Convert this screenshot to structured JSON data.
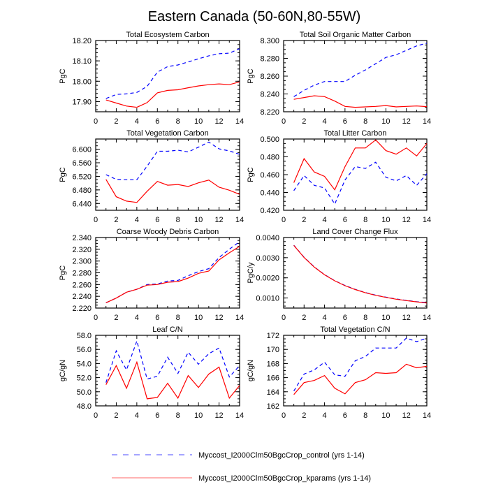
{
  "title": "Eastern Canada (50-60N,80-55W)",
  "legend": [
    {
      "label": "Myccost_I2000Clm50BgcCrop_control (yrs 1-14)",
      "color": "#0000ff",
      "style": "dashed"
    },
    {
      "label": "Myccost_I2000Clm50BgcCrop_kparams (yrs 1-14)",
      "color": "#ff0000",
      "style": "solid"
    }
  ],
  "chart_data": [
    {
      "type": "line",
      "title": "Total Ecosystem Carbon",
      "xlabel": "",
      "ylabel": "PgC",
      "xlim": [
        0,
        14
      ],
      "ylim": [
        17.85,
        18.2
      ],
      "xticks": [
        0,
        2,
        4,
        6,
        8,
        10,
        12,
        14
      ],
      "yticks": [
        17.9,
        18.0,
        18.1,
        18.2
      ],
      "ytick_labels": [
        "17.90",
        "18.00",
        "18.10",
        "18.20"
      ],
      "yminor": 0.02,
      "x": [
        1,
        2,
        3,
        4,
        5,
        6,
        7,
        8,
        9,
        10,
        11,
        12,
        13,
        14
      ],
      "series": [
        {
          "name": "Myccost_I2000Clm50BgcCrop_control (yrs 1-14)",
          "values": [
            17.915,
            17.935,
            17.938,
            17.945,
            17.975,
            18.045,
            18.072,
            18.08,
            18.095,
            18.11,
            18.125,
            18.135,
            18.138,
            18.16
          ]
        },
        {
          "name": "Myccost_I2000Clm50BgcCrop_kparams (yrs 1-14)",
          "values": [
            17.908,
            17.893,
            17.878,
            17.872,
            17.895,
            17.943,
            17.955,
            17.958,
            17.968,
            17.977,
            17.983,
            17.987,
            17.983,
            17.997
          ]
        }
      ]
    },
    {
      "type": "line",
      "title": "Total Soil Organic Matter Carbon",
      "xlabel": "",
      "ylabel": "PgC",
      "xlim": [
        0,
        14
      ],
      "ylim": [
        8.22,
        8.3
      ],
      "xticks": [
        0,
        2,
        4,
        6,
        8,
        10,
        12,
        14
      ],
      "yticks": [
        8.22,
        8.24,
        8.26,
        8.28,
        8.3
      ],
      "ytick_labels": [
        "8.220",
        "8.240",
        "8.260",
        "8.280",
        "8.300"
      ],
      "yminor": 0.005,
      "x": [
        1,
        2,
        3,
        4,
        5,
        6,
        7,
        8,
        9,
        10,
        11,
        12,
        13,
        14
      ],
      "series": [
        {
          "name": "Myccost_I2000Clm50BgcCrop_control (yrs 1-14)",
          "values": [
            8.237,
            8.244,
            8.25,
            8.254,
            8.254,
            8.254,
            8.261,
            8.267,
            8.274,
            8.281,
            8.284,
            8.289,
            8.294,
            8.297
          ]
        },
        {
          "name": "Myccost_I2000Clm50BgcCrop_kparams (yrs 1-14)",
          "values": [
            8.234,
            8.236,
            8.238,
            8.237,
            8.232,
            8.226,
            8.225,
            8.2255,
            8.226,
            8.227,
            8.2255,
            8.226,
            8.2265,
            8.2258
          ]
        }
      ]
    },
    {
      "type": "line",
      "title": "Total Vegetation Carbon",
      "xlabel": "",
      "ylabel": "PgC",
      "xlim": [
        0,
        14
      ],
      "ylim": [
        6.42,
        6.63
      ],
      "xticks": [
        0,
        2,
        4,
        6,
        8,
        10,
        12,
        14
      ],
      "yticks": [
        6.44,
        6.48,
        6.52,
        6.56,
        6.6
      ],
      "ytick_labels": [
        "6.440",
        "6.480",
        "6.520",
        "6.560",
        "6.600"
      ],
      "yminor": 0.01,
      "x": [
        1,
        2,
        3,
        4,
        5,
        6,
        7,
        8,
        9,
        10,
        11,
        12,
        13,
        14
      ],
      "series": [
        {
          "name": "Myccost_I2000Clm50BgcCrop_control (yrs 1-14)",
          "values": [
            6.525,
            6.511,
            6.51,
            6.51,
            6.55,
            6.594,
            6.594,
            6.597,
            6.592,
            6.606,
            6.621,
            6.601,
            6.595,
            6.585
          ]
        },
        {
          "name": "Myccost_I2000Clm50BgcCrop_kparams (yrs 1-14)",
          "values": [
            6.511,
            6.46,
            6.447,
            6.443,
            6.476,
            6.505,
            6.494,
            6.496,
            6.49,
            6.501,
            6.509,
            6.488,
            6.479,
            6.467
          ]
        }
      ]
    },
    {
      "type": "line",
      "title": "Total Litter Carbon",
      "xlabel": "",
      "ylabel": "PgC",
      "xlim": [
        0,
        14
      ],
      "ylim": [
        0.42,
        0.5
      ],
      "xticks": [
        0,
        2,
        4,
        6,
        8,
        10,
        12,
        14
      ],
      "yticks": [
        0.42,
        0.44,
        0.46,
        0.48,
        0.5
      ],
      "ytick_labels": [
        "0.420",
        "0.440",
        "0.460",
        "0.480",
        "0.500"
      ],
      "yminor": 0.005,
      "x": [
        1,
        2,
        3,
        4,
        5,
        6,
        7,
        8,
        9,
        10,
        11,
        12,
        13,
        14
      ],
      "series": [
        {
          "name": "Myccost_I2000Clm50BgcCrop_control (yrs 1-14)",
          "values": [
            0.442,
            0.459,
            0.448,
            0.445,
            0.427,
            0.454,
            0.469,
            0.467,
            0.474,
            0.457,
            0.453,
            0.459,
            0.448,
            0.461
          ]
        },
        {
          "name": "Myccost_I2000Clm50BgcCrop_kparams (yrs 1-14)",
          "values": [
            0.451,
            0.478,
            0.463,
            0.458,
            0.443,
            0.469,
            0.49,
            0.49,
            0.499,
            0.487,
            0.483,
            0.49,
            0.481,
            0.495
          ]
        }
      ]
    },
    {
      "type": "line",
      "title": "Coarse Woody Debris Carbon",
      "xlabel": "",
      "ylabel": "PgC",
      "xlim": [
        0,
        14
      ],
      "ylim": [
        2.22,
        2.34
      ],
      "xticks": [
        0,
        2,
        4,
        6,
        8,
        10,
        12,
        14
      ],
      "yticks": [
        2.22,
        2.24,
        2.26,
        2.28,
        2.3,
        2.32,
        2.34
      ],
      "ytick_labels": [
        "2.220",
        "2.240",
        "2.260",
        "2.280",
        "2.300",
        "2.320",
        "2.340"
      ],
      "yminor": 0.005,
      "x": [
        1,
        2,
        3,
        4,
        5,
        6,
        7,
        8,
        9,
        10,
        11,
        12,
        13,
        14
      ],
      "series": [
        {
          "name": "Myccost_I2000Clm50BgcCrop_control (yrs 1-14)",
          "values": [
            2.229,
            2.237,
            2.247,
            2.252,
            2.26,
            2.261,
            2.266,
            2.267,
            2.275,
            2.282,
            2.287,
            2.306,
            2.32,
            2.333
          ]
        },
        {
          "name": "Myccost_I2000Clm50BgcCrop_kparams (yrs 1-14)",
          "values": [
            2.229,
            2.237,
            2.247,
            2.252,
            2.259,
            2.26,
            2.264,
            2.265,
            2.271,
            2.279,
            2.283,
            2.302,
            2.314,
            2.325
          ]
        }
      ]
    },
    {
      "type": "line",
      "title": "Land Cover Change Flux",
      "xlabel": "",
      "ylabel": "PgC/y",
      "xlim": [
        0,
        14
      ],
      "ylim": [
        0.0005,
        0.004
      ],
      "xticks": [
        0,
        2,
        4,
        6,
        8,
        10,
        12,
        14
      ],
      "yticks": [
        0.001,
        0.002,
        0.003,
        0.004
      ],
      "ytick_labels": [
        "0.0010",
        "0.0020",
        "0.0030",
        "0.0040"
      ],
      "yminor": 0.0002,
      "x": [
        1,
        2,
        3,
        4,
        5,
        6,
        7,
        8,
        9,
        10,
        11,
        12,
        13,
        14
      ],
      "series": [
        {
          "name": "Myccost_I2000Clm50BgcCrop_control (yrs 1-14)",
          "values": [
            0.00362,
            0.00302,
            0.00254,
            0.00216,
            0.00186,
            0.00162,
            0.00143,
            0.00127,
            0.00114,
            0.00104,
            0.00095,
            0.00088,
            0.00082,
            0.00077
          ]
        },
        {
          "name": "Myccost_I2000Clm50BgcCrop_kparams (yrs 1-14)",
          "values": [
            0.00361,
            0.00301,
            0.00253,
            0.00215,
            0.00185,
            0.00161,
            0.00142,
            0.00126,
            0.00113,
            0.00103,
            0.00094,
            0.00087,
            0.00081,
            0.00075
          ]
        }
      ]
    },
    {
      "type": "line",
      "title": "Leaf C/N",
      "xlabel": "",
      "ylabel": "gC/gN",
      "xlim": [
        0,
        14
      ],
      "ylim": [
        48.0,
        58.0
      ],
      "xticks": [
        0,
        2,
        4,
        6,
        8,
        10,
        12,
        14
      ],
      "yticks": [
        48,
        50,
        52,
        54,
        56,
        58
      ],
      "ytick_labels": [
        "48.0",
        "50.0",
        "52.0",
        "54.0",
        "56.0",
        "58.0"
      ],
      "yminor": 0.5,
      "x": [
        1,
        2,
        3,
        4,
        5,
        6,
        7,
        8,
        9,
        10,
        11,
        12,
        13,
        14
      ],
      "series": [
        {
          "name": "Myccost_I2000Clm50BgcCrop_control (yrs 1-14)",
          "values": [
            51.3,
            55.8,
            53.1,
            57.2,
            51.8,
            52.2,
            54.9,
            52.6,
            55.6,
            53.9,
            55.4,
            56.2,
            52.1,
            53.7
          ]
        },
        {
          "name": "Myccost_I2000Clm50BgcCrop_kparams (yrs 1-14)",
          "values": [
            51.0,
            53.7,
            50.5,
            54.2,
            49.0,
            49.2,
            51.2,
            49.1,
            52.3,
            50.6,
            52.5,
            53.5,
            49.1,
            50.9
          ]
        }
      ]
    },
    {
      "type": "line",
      "title": "Total Vegetation C/N",
      "xlabel": "",
      "ylabel": "gC/gN",
      "xlim": [
        0,
        14
      ],
      "ylim": [
        162,
        172
      ],
      "xticks": [
        0,
        2,
        4,
        6,
        8,
        10,
        12,
        14
      ],
      "yticks": [
        162,
        164,
        166,
        168,
        170,
        172
      ],
      "ytick_labels": [
        "162",
        "164",
        "166",
        "168",
        "170",
        "172"
      ],
      "yminor": 0.5,
      "x": [
        1,
        2,
        3,
        4,
        5,
        6,
        7,
        8,
        9,
        10,
        11,
        12,
        13,
        14
      ],
      "series": [
        {
          "name": "Myccost_I2000Clm50BgcCrop_control (yrs 1-14)",
          "values": [
            164.1,
            166.5,
            167.1,
            168.2,
            166.4,
            166.2,
            168.4,
            169.0,
            170.2,
            170.2,
            170.2,
            171.6,
            171.1,
            171.6
          ]
        },
        {
          "name": "Myccost_I2000Clm50BgcCrop_kparams (yrs 1-14)",
          "values": [
            163.6,
            165.3,
            165.6,
            166.3,
            164.5,
            163.7,
            165.3,
            165.7,
            166.7,
            166.6,
            166.7,
            167.9,
            167.4,
            167.6
          ]
        }
      ]
    }
  ]
}
